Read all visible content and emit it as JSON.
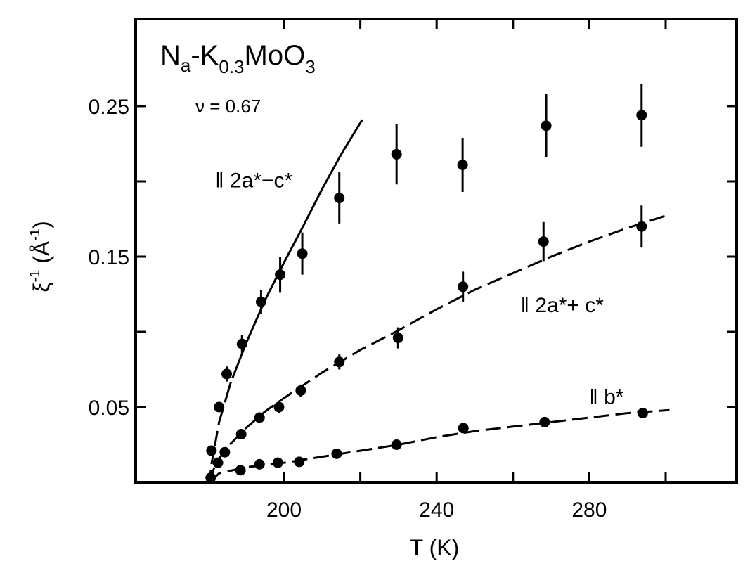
{
  "chart_data": {
    "type": "scatter",
    "title": "Na-K0.3MoO3",
    "annotations": {
      "compound": {
        "main1": "N",
        "sub1": "a",
        "main2": "-K",
        "sub2": "0.3",
        "main3": "MoO",
        "sub3": "3"
      },
      "exponent": "ν = 0.67"
    },
    "xlabel": "T (K)",
    "ylabel": {
      "main": "ξ",
      "sup1": "-1",
      "unit_open": " (Å",
      "sup2": "-1",
      "unit_close": ")"
    },
    "xlim": [
      162.5,
      319.5
    ],
    "ylim": [
      0.0,
      0.308
    ],
    "x_ticks": [
      200,
      220,
      240,
      260,
      280,
      300
    ],
    "x_tick_labels": [
      {
        "value": 200,
        "label": "200"
      },
      {
        "value": 240,
        "label": "240"
      },
      {
        "value": 280,
        "label": "280"
      }
    ],
    "y_ticks": [
      0.05,
      0.1,
      0.15,
      0.2,
      0.25
    ],
    "y_tick_labels": [
      {
        "value": 0.05,
        "label": "0.05"
      },
      {
        "value": 0.15,
        "label": "0.15"
      },
      {
        "value": 0.25,
        "label": "0.25"
      }
    ],
    "grid": false,
    "legend": "inline labels",
    "series": [
      {
        "name": "|| 2a* - c*",
        "label": "‖ 2a*−c*",
        "label_pos": {
          "T": 182,
          "v": 0.196
        },
        "fit_line": "solid-to-dashed",
        "fit_curve": [
          [
            180.5,
            0.0
          ],
          [
            181,
            0.012
          ],
          [
            183,
            0.04
          ],
          [
            186,
            0.066
          ],
          [
            190,
            0.092
          ],
          [
            195,
            0.121
          ],
          [
            200,
            0.146
          ],
          [
            205,
            0.17
          ],
          [
            210,
            0.195
          ],
          [
            215,
            0.218
          ],
          [
            220.5,
            0.241
          ]
        ],
        "points": [
          {
            "T": 181.0,
            "v": 0.021,
            "err": 0.0
          },
          {
            "T": 183.0,
            "v": 0.05,
            "err": 0.003
          },
          {
            "T": 185.0,
            "v": 0.072,
            "err": 0.005
          },
          {
            "T": 189.0,
            "v": 0.092,
            "err": 0.006
          },
          {
            "T": 194.0,
            "v": 0.12,
            "err": 0.008
          },
          {
            "T": 199.0,
            "v": 0.138,
            "err": 0.012
          },
          {
            "T": 204.8,
            "v": 0.152,
            "err": 0.014
          },
          {
            "T": 214.5,
            "v": 0.189,
            "err": 0.017
          },
          {
            "T": 229.5,
            "v": 0.218,
            "err": 0.02
          },
          {
            "T": 246.8,
            "v": 0.211,
            "err": 0.018
          },
          {
            "T": 268.7,
            "v": 0.237,
            "err": 0.021
          },
          {
            "T": 293.7,
            "v": 0.244,
            "err": 0.021
          }
        ]
      },
      {
        "name": "|| 2a* + c*",
        "label": "‖ 2a*+ c*",
        "label_pos": {
          "T": 262,
          "v": 0.113
        },
        "fit_line": "dashed",
        "fit_curve": [
          [
            180.5,
            0.0
          ],
          [
            182,
            0.012
          ],
          [
            185,
            0.023
          ],
          [
            190,
            0.036
          ],
          [
            195,
            0.047
          ],
          [
            200,
            0.056
          ],
          [
            210,
            0.073
          ],
          [
            220,
            0.088
          ],
          [
            230,
            0.101
          ],
          [
            240,
            0.115
          ],
          [
            250,
            0.128
          ],
          [
            260,
            0.139
          ],
          [
            270,
            0.15
          ],
          [
            280,
            0.16
          ],
          [
            290,
            0.169
          ],
          [
            301,
            0.178
          ]
        ],
        "points": [
          {
            "T": 184.5,
            "v": 0.02,
            "err": 0.0
          },
          {
            "T": 188.8,
            "v": 0.032,
            "err": 0.0
          },
          {
            "T": 193.6,
            "v": 0.043,
            "err": 0.003
          },
          {
            "T": 198.7,
            "v": 0.05,
            "err": 0.004
          },
          {
            "T": 204.4,
            "v": 0.061,
            "err": 0.004
          },
          {
            "T": 214.5,
            "v": 0.08,
            "err": 0.005
          },
          {
            "T": 229.9,
            "v": 0.096,
            "err": 0.007
          },
          {
            "T": 246.9,
            "v": 0.13,
            "err": 0.01
          },
          {
            "T": 268.0,
            "v": 0.16,
            "err": 0.013
          },
          {
            "T": 293.7,
            "v": 0.17,
            "err": 0.014
          }
        ]
      },
      {
        "name": "|| b*",
        "label": "‖ b*",
        "label_pos": {
          "T": 280,
          "v": 0.052
        },
        "fit_line": "dashed",
        "fit_curve": [
          [
            180.5,
            0.0
          ],
          [
            183,
            0.006
          ],
          [
            190,
            0.01
          ],
          [
            200,
            0.013
          ],
          [
            210,
            0.017
          ],
          [
            220,
            0.021
          ],
          [
            230,
            0.025
          ],
          [
            240,
            0.03
          ],
          [
            250,
            0.034
          ],
          [
            260,
            0.037
          ],
          [
            270,
            0.04
          ],
          [
            280,
            0.043
          ],
          [
            290,
            0.046
          ],
          [
            301,
            0.048
          ]
        ],
        "points": [
          {
            "T": 180.8,
            "v": 0.003,
            "err": 0.0
          },
          {
            "T": 182.7,
            "v": 0.013,
            "err": 0.0
          },
          {
            "T": 188.6,
            "v": 0.008,
            "err": 0.0
          },
          {
            "T": 193.6,
            "v": 0.012,
            "err": 0.0
          },
          {
            "T": 198.4,
            "v": 0.013,
            "err": 0.0
          },
          {
            "T": 204.0,
            "v": 0.0136,
            "err": 0.0
          },
          {
            "T": 213.8,
            "v": 0.019,
            "err": 0.0
          },
          {
            "T": 229.5,
            "v": 0.025,
            "err": 0.0
          },
          {
            "T": 247.0,
            "v": 0.036,
            "err": 0.0
          },
          {
            "T": 268.3,
            "v": 0.04,
            "err": 0.0
          },
          {
            "T": 294.0,
            "v": 0.046,
            "err": 0.0
          }
        ]
      }
    ]
  },
  "colors": {
    "ink": "#000000",
    "background": "#ffffff"
  }
}
